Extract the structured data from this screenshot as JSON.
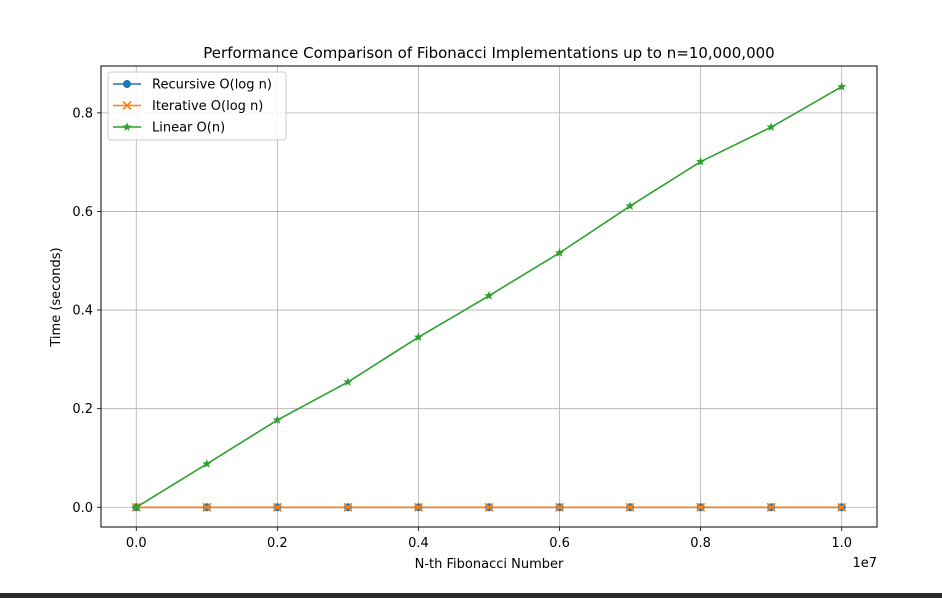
{
  "chart_data": {
    "type": "line",
    "title": "Performance Comparison of Fibonacci Implementations up to n=10,000,000",
    "xlabel": "N-th Fibonacci Number",
    "ylabel": "Time (seconds)",
    "x_offset_label": "1e7",
    "xlim": [
      -0.05,
      1.05
    ],
    "ylim": [
      -0.04,
      0.895
    ],
    "x_ticks": [
      0.0,
      0.2,
      0.4,
      0.6,
      0.8,
      1.0
    ],
    "x_tick_labels": [
      "0.0",
      "0.2",
      "0.4",
      "0.6",
      "0.8",
      "1.0"
    ],
    "y_ticks": [
      0.0,
      0.2,
      0.4,
      0.6,
      0.8
    ],
    "y_tick_labels": [
      "0.0",
      "0.2",
      "0.4",
      "0.6",
      "0.8"
    ],
    "grid": true,
    "legend_position": "top-left",
    "x": [
      0.0,
      0.1,
      0.2,
      0.3,
      0.4,
      0.5,
      0.6,
      0.7,
      0.8,
      0.9,
      1.0
    ],
    "series": [
      {
        "name": "Recursive O(log n)",
        "marker": "circle",
        "color": "#1f77b4",
        "values": [
          0,
          0,
          0,
          0,
          0,
          0,
          0,
          0,
          0,
          0,
          0
        ]
      },
      {
        "name": "Iterative O(log n)",
        "marker": "x",
        "color": "#ff7f0e",
        "values": [
          0,
          0,
          0,
          0,
          0,
          0,
          0,
          0,
          0,
          0,
          0
        ]
      },
      {
        "name": "Linear O(n)",
        "marker": "star",
        "color": "#2ca02c",
        "values": [
          0.0,
          0.088,
          0.177,
          0.254,
          0.345,
          0.429,
          0.516,
          0.611,
          0.701,
          0.771,
          0.853
        ]
      }
    ]
  }
}
